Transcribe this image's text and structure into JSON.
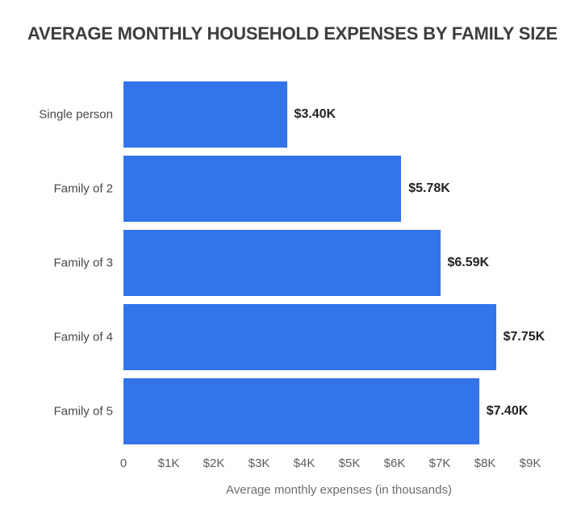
{
  "title": "AVERAGE MONTHLY HOUSEHOLD EXPENSES BY FAMILY SIZE",
  "chart_data": {
    "type": "bar",
    "orientation": "horizontal",
    "title": "AVERAGE MONTHLY HOUSEHOLD EXPENSES BY FAMILY SIZE",
    "categories": [
      "Single person",
      "Family of 2",
      "Family of 3",
      "Family of 4",
      "Family of 5"
    ],
    "values": [
      3.4,
      5.78,
      6.59,
      7.75,
      7.4
    ],
    "value_labels": [
      "$3.40K",
      "$5.78K",
      "$6.59K",
      "$7.75K",
      "$7.40K"
    ],
    "x_ticks": [
      "0",
      "$1K",
      "$2K",
      "$3K",
      "$4K",
      "$5K",
      "$6K",
      "$7K",
      "$8K",
      "$9K"
    ],
    "x_tick_values": [
      0,
      1,
      2,
      3,
      4,
      5,
      6,
      7,
      8,
      9
    ],
    "xlim": [
      0,
      9
    ],
    "xlabel": "Average monthly expenses (in thousands)",
    "ylabel": "",
    "grid": false,
    "legend": false,
    "bar_color": "#3374ea"
  },
  "colors": {
    "background": "#ffffff",
    "bar": "#3374ea",
    "title_text": "#3d3d3d",
    "category_text": "#474747",
    "value_text": "#222222",
    "tick_text": "#5d5d5d",
    "axis_label_text": "#6d6d6d"
  }
}
